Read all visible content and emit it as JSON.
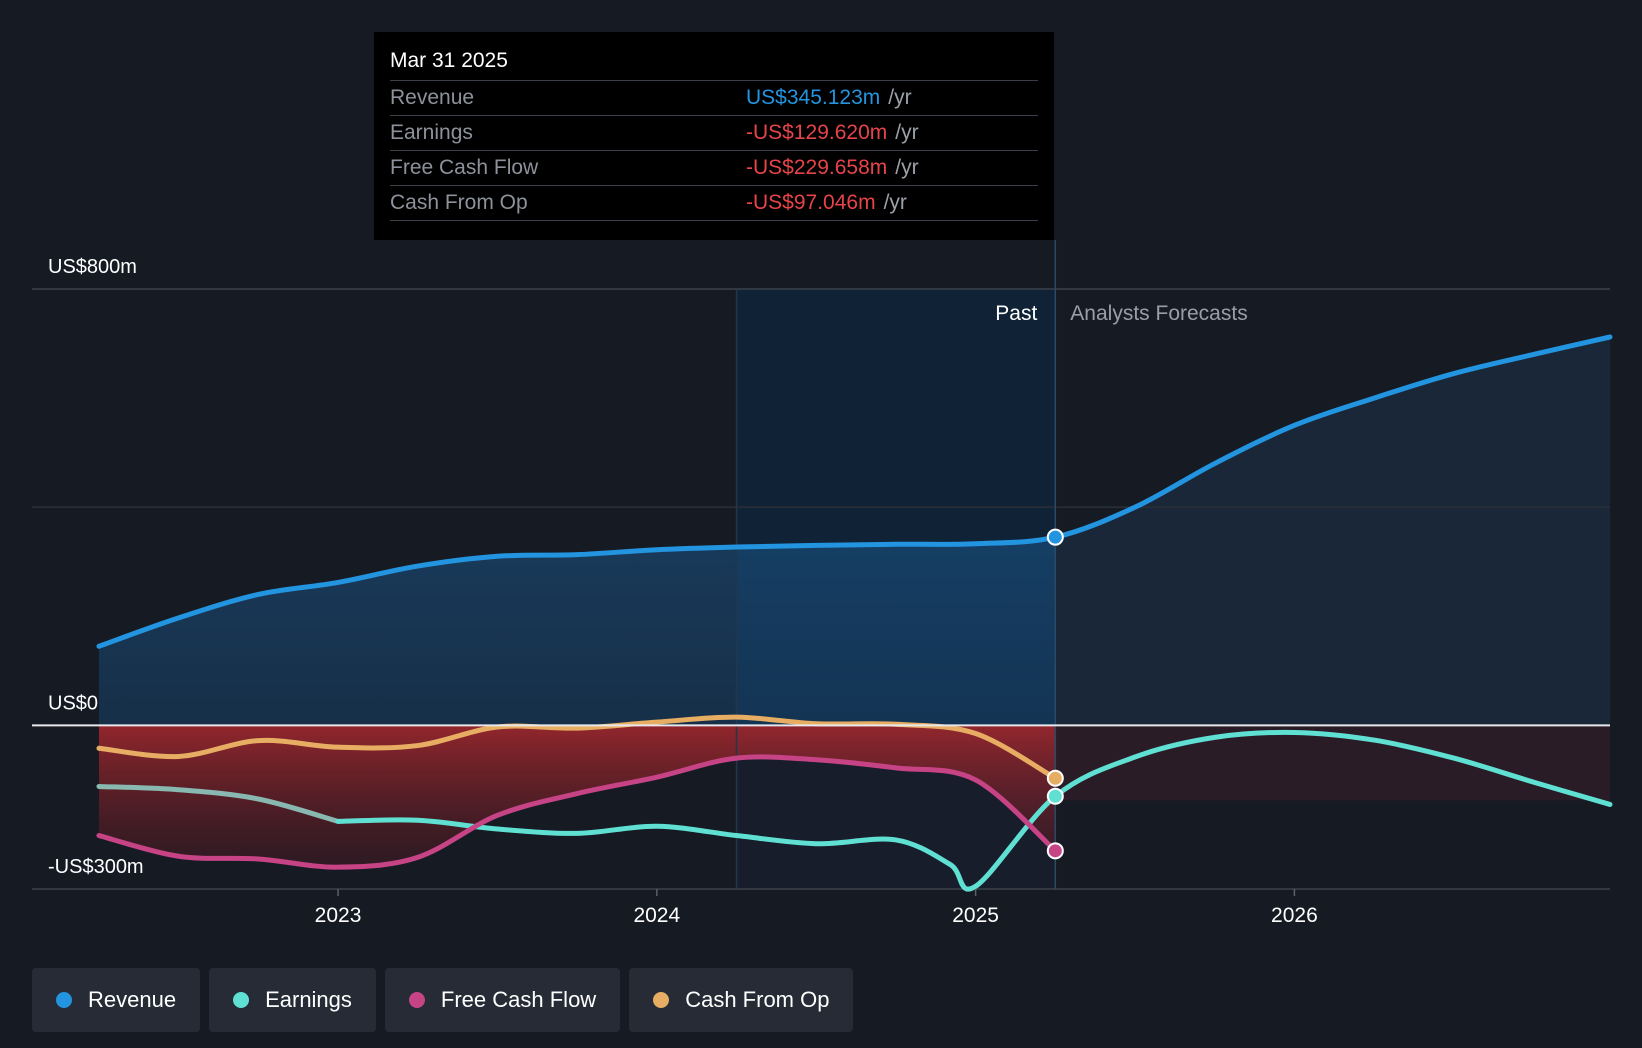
{
  "tooltip": {
    "date": "Mar 31 2025",
    "rows": [
      {
        "label": "Revenue",
        "value": "US$345.123m",
        "unit": "/yr",
        "color": "#2394df"
      },
      {
        "label": "Earnings",
        "value": "-US$129.620m",
        "unit": "/yr",
        "color": "#e64449"
      },
      {
        "label": "Free Cash Flow",
        "value": "-US$229.658m",
        "unit": "/yr",
        "color": "#e64449"
      },
      {
        "label": "Cash From Op",
        "value": "-US$97.046m",
        "unit": "/yr",
        "color": "#e64449"
      }
    ]
  },
  "legend": [
    {
      "label": "Revenue",
      "color": "#2394df"
    },
    {
      "label": "Earnings",
      "color": "#5fe0d3"
    },
    {
      "label": "Free Cash Flow",
      "color": "#c64385"
    },
    {
      "label": "Cash From Op",
      "color": "#e7ae63"
    }
  ],
  "chart_data": {
    "type": "line",
    "title": "",
    "y_tick_labels": [
      "US$800m",
      "US$0",
      "-US$300m"
    ],
    "ylim": [
      -300,
      800
    ],
    "xlim": [
      2022.04,
      2026.99
    ],
    "x_tick_labels": [
      "2023",
      "2024",
      "2025",
      "2026"
    ],
    "x_ticks": [
      2023,
      2024,
      2025,
      2026
    ],
    "past_label": "Past",
    "forecast_label": "Analysts Forecasts",
    "forecast_start": 2025.25,
    "highlight_start": 2024.25,
    "series": [
      {
        "name": "Revenue",
        "color": "#2394df",
        "x": [
          2022.25,
          2022.5,
          2022.75,
          2023.0,
          2023.25,
          2023.5,
          2023.75,
          2024.0,
          2024.25,
          2024.5,
          2024.75,
          2025.0,
          2025.25,
          2025.5,
          2025.75,
          2026.0,
          2026.25,
          2026.5,
          2026.75,
          2026.99
        ],
        "y": [
          145,
          197,
          240,
          262,
          292,
          310,
          313,
          322,
          327,
          330,
          332,
          333,
          345,
          400,
          480,
          550,
          600,
          645,
          680,
          712
        ]
      },
      {
        "name": "Earnings",
        "color": "#5fe0d3",
        "x": [
          2022.25,
          2022.5,
          2022.75,
          2023.0,
          2023.25,
          2023.5,
          2023.75,
          2024.0,
          2024.25,
          2024.5,
          2024.75,
          2024.92,
          2025.0,
          2025.25,
          2025.5,
          2025.75,
          2026.0,
          2026.25,
          2026.5,
          2026.75,
          2026.99
        ],
        "y": [
          -112,
          -118,
          -135,
          -176,
          -174,
          -190,
          -198,
          -185,
          -202,
          -217,
          -210,
          -255,
          -295,
          -130,
          -58,
          -22,
          -13,
          -27,
          -60,
          -104,
          -145
        ]
      },
      {
        "name": "Free Cash Flow",
        "color": "#c64385",
        "x": [
          2022.25,
          2022.5,
          2022.75,
          2023.0,
          2023.25,
          2023.5,
          2023.75,
          2024.0,
          2024.25,
          2024.5,
          2024.75,
          2025.0,
          2025.25
        ],
        "y": [
          -202,
          -240,
          -245,
          -260,
          -242,
          -165,
          -125,
          -95,
          -60,
          -63,
          -78,
          -100,
          -230
        ]
      },
      {
        "name": "Cash From Op",
        "color": "#e7ae63",
        "x": [
          2022.25,
          2022.5,
          2022.75,
          2023.0,
          2023.25,
          2023.5,
          2023.75,
          2024.0,
          2024.25,
          2024.5,
          2024.75,
          2025.0,
          2025.25
        ],
        "y": [
          -42,
          -57,
          -28,
          -40,
          -37,
          -3,
          -5,
          6,
          15,
          3,
          2,
          -15,
          -97
        ]
      }
    ]
  }
}
